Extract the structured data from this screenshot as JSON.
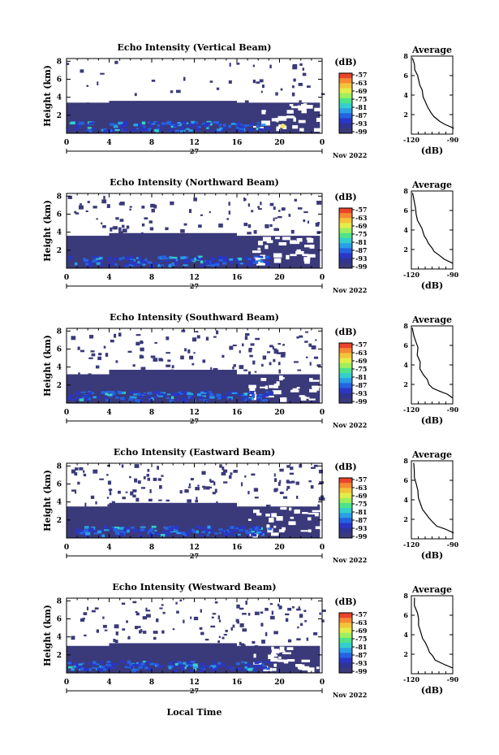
{
  "chart_data": [
    {
      "type": "heatmap",
      "title": "Echo Intensity (Vertical Beam)",
      "ylabel": "Height (km)",
      "yticks": [
        "2",
        "4",
        "6",
        "8"
      ],
      "xticks": [
        "0",
        "4",
        "8",
        "12",
        "16",
        "20",
        "0"
      ],
      "date_day": "27",
      "date_month": "Nov 2022",
      "colorbar_unit": "(dB)",
      "colorbar_ticks": [
        "-57",
        "-63",
        "-69",
        "-75",
        "-81",
        "-87",
        "-93",
        "-99"
      ],
      "profile": {
        "title": "Average",
        "xlabel": "(dB)",
        "xticks": [
          "-120",
          "-90"
        ],
        "yticks": [
          "2",
          "4",
          "6",
          "8"
        ],
        "xlim": [
          -120,
          -90
        ],
        "ylim": [
          0,
          8
        ],
        "x": [
          -90,
          -95,
          -100,
          -104,
          -106,
          -108,
          -110,
          -112,
          -113,
          -114,
          -115,
          -116,
          -117,
          -118,
          -119
        ],
        "y": [
          0.6,
          1.0,
          1.3,
          1.8,
          2.2,
          2.8,
          3.4,
          3.8,
          4.5,
          5.0,
          5.6,
          6.0,
          6.6,
          7.2,
          7.8
        ]
      }
    },
    {
      "type": "heatmap",
      "title": "Echo Intensity (Northward Beam)",
      "ylabel": "Height (km)",
      "yticks": [
        "2",
        "4",
        "6",
        "8"
      ],
      "xticks": [
        "0",
        "4",
        "8",
        "12",
        "16",
        "20",
        "0"
      ],
      "date_day": "27",
      "date_month": "Nov 2022",
      "colorbar_unit": "(dB)",
      "colorbar_ticks": [
        "-57",
        "-63",
        "-69",
        "-75",
        "-81",
        "-87",
        "-93",
        "-99"
      ],
      "profile": {
        "title": "Average",
        "xlabel": "(dB)",
        "xticks": [
          "-120",
          "-90"
        ],
        "yticks": [
          "2",
          "4",
          "6",
          "8"
        ],
        "xlim": [
          -120,
          -90
        ],
        "ylim": [
          0,
          8
        ],
        "x": [
          -90,
          -96,
          -100,
          -103,
          -105,
          -107,
          -109,
          -111,
          -113,
          -115,
          -116,
          -117,
          -118,
          -119
        ],
        "y": [
          0.6,
          1.0,
          1.4,
          1.8,
          2.1,
          2.6,
          3.0,
          3.4,
          4.2,
          5.0,
          5.6,
          6.2,
          7.0,
          7.8
        ]
      }
    },
    {
      "type": "heatmap",
      "title": "Echo Intensity (Southward Beam)",
      "ylabel": "Height (km)",
      "yticks": [
        "2",
        "4",
        "6",
        "8"
      ],
      "xticks": [
        "0",
        "4",
        "8",
        "12",
        "16",
        "20",
        "0"
      ],
      "date_day": "27",
      "date_month": "Nov 2022",
      "colorbar_unit": "(dB)",
      "colorbar_ticks": [
        "-57",
        "-63",
        "-69",
        "-75",
        "-81",
        "-87",
        "-93",
        "-99"
      ],
      "profile": {
        "title": "Average",
        "xlabel": "(dB)",
        "xticks": [
          "-120",
          "-90"
        ],
        "yticks": [
          "2",
          "4",
          "6",
          "8"
        ],
        "xlim": [
          -120,
          -90
        ],
        "ylim": [
          0,
          8
        ],
        "x": [
          -90,
          -94,
          -99,
          -104,
          -107,
          -109,
          -111,
          -113,
          -114,
          -115,
          -116,
          -117,
          -118,
          -119
        ],
        "y": [
          0.6,
          1.0,
          1.3,
          1.6,
          2.0,
          2.5,
          3.0,
          3.6,
          4.3,
          5.0,
          5.8,
          6.4,
          7.0,
          7.8
        ]
      }
    },
    {
      "type": "heatmap",
      "title": "Echo Intensity (Eastward Beam)",
      "ylabel": "Height (km)",
      "yticks": [
        "2",
        "4",
        "6",
        "8"
      ],
      "xticks": [
        "0",
        "4",
        "8",
        "12",
        "16",
        "20",
        "0"
      ],
      "date_day": "27",
      "date_month": "Nov 2022",
      "colorbar_unit": "(dB)",
      "colorbar_ticks": [
        "-57",
        "-63",
        "-69",
        "-75",
        "-81",
        "-87",
        "-93",
        "-99"
      ],
      "profile": {
        "title": "Average",
        "xlabel": "(dB)",
        "xticks": [
          "-120",
          "-90"
        ],
        "yticks": [
          "2",
          "4",
          "6",
          "8"
        ],
        "xlim": [
          -120,
          -90
        ],
        "ylim": [
          0,
          8
        ],
        "x": [
          -90,
          -96,
          -101,
          -105,
          -107,
          -109,
          -111,
          -113,
          -114,
          -115,
          -116,
          -117,
          -118,
          -119
        ],
        "y": [
          0.6,
          1.0,
          1.3,
          1.7,
          2.1,
          2.6,
          3.0,
          3.5,
          4.2,
          5.0,
          5.7,
          6.3,
          7.0,
          7.8
        ]
      }
    },
    {
      "type": "heatmap",
      "title": "Echo Intensity (Westward Beam)",
      "ylabel": "Height (km)",
      "yticks": [
        "2",
        "4",
        "6",
        "8"
      ],
      "xticks": [
        "0",
        "4",
        "8",
        "12",
        "16",
        "20",
        "0"
      ],
      "date_day": "27",
      "date_month": "Nov 2022",
      "colorbar_unit": "(dB)",
      "colorbar_ticks": [
        "-57",
        "-63",
        "-69",
        "-75",
        "-81",
        "-87",
        "-93",
        "-99"
      ],
      "profile": {
        "title": "Average",
        "xlabel": "(dB)",
        "xticks": [
          "-120",
          "-90"
        ],
        "yticks": [
          "2",
          "4",
          "6",
          "8"
        ],
        "xlim": [
          -120,
          -90
        ],
        "ylim": [
          0,
          8
        ],
        "x": [
          -90,
          -97,
          -102,
          -105,
          -107,
          -108,
          -110,
          -112,
          -113,
          -114,
          -115,
          -116,
          -117,
          -118
        ],
        "y": [
          0.6,
          1.0,
          1.4,
          1.8,
          2.2,
          2.7,
          3.2,
          3.6,
          4.3,
          5.0,
          5.6,
          6.2,
          7.0,
          7.8
        ]
      }
    }
  ],
  "footer_xlabel": "Local Time",
  "colors": {
    "background": "#3a3a7a",
    "cloud": "#3e3d78",
    "low": "#2d2fb0",
    "mid": "#1e8cdc",
    "high": "#33d0c8",
    "bright": "#f0e860"
  }
}
